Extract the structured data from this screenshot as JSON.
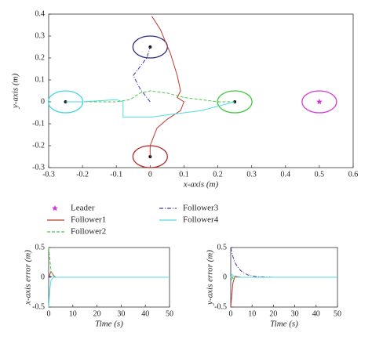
{
  "chart_data": [
    {
      "type": "line",
      "xlabel": "x-axis (m)",
      "ylabel": "y-axis (m)",
      "xlim": [
        -0.3,
        0.6
      ],
      "xticks": [
        -0.3,
        -0.2,
        -0.1,
        0,
        0.1,
        0.2,
        0.3,
        0.4,
        0.5,
        0.6
      ],
      "ylim": [
        -0.3,
        0.4
      ],
      "yticks": [
        -0.3,
        -0.2,
        -0.1,
        0,
        0.1,
        0.2,
        0.3,
        0.4
      ],
      "targets": [
        {
          "x": 0,
          "y": 0.25,
          "color": "#2a2a8a"
        },
        {
          "x": 0,
          "y": -0.25,
          "color": "#b02a2a"
        },
        {
          "x": -0.25,
          "y": 0,
          "color": "#40d8e0"
        },
        {
          "x": 0.25,
          "y": 0,
          "color": "#3cc83c"
        }
      ],
      "series": [
        {
          "name": "Leader",
          "color": "#d43ad4",
          "marker": "star",
          "x": [
            0.5
          ],
          "values": [
            0
          ]
        },
        {
          "name": "Follower1",
          "color": "#c0392b",
          "dash": "solid",
          "x": [
            0.005,
            0.03,
            0.06,
            0.08,
            0.09,
            0.08,
            0.1,
            0.09,
            0.05,
            0.02,
            0,
            0
          ],
          "values": [
            0.39,
            0.33,
            0.22,
            0.12,
            0.05,
            0.02,
            0,
            -0.04,
            -0.08,
            -0.12,
            -0.2,
            -0.25
          ]
        },
        {
          "name": "Follower2",
          "color": "#4cc84c",
          "dash": "dashed",
          "x": [
            -0.25,
            -0.2,
            -0.1,
            -0.06,
            -0.03,
            0,
            0.05,
            0.1,
            0.2,
            0.25
          ],
          "values": [
            0,
            0,
            0,
            0.01,
            0.04,
            0.05,
            0.04,
            0.02,
            0,
            0
          ]
        },
        {
          "name": "Follower3",
          "color": "#3a3aa8",
          "dash": "dashdot",
          "x": [
            0,
            -0.03,
            -0.05,
            -0.03,
            -0.01,
            0
          ],
          "values": [
            0,
            0.06,
            0.12,
            0.16,
            0.2,
            0.25
          ]
        },
        {
          "name": "Follower4",
          "color": "#50dce0",
          "dash": "solid",
          "x": [
            -0.25,
            -0.2,
            -0.1,
            -0.08,
            -0.08,
            -0.05,
            0,
            0.05,
            0.15,
            0.25
          ],
          "values": [
            0,
            0,
            0.01,
            0,
            -0.07,
            -0.07,
            -0.07,
            -0.06,
            -0.04,
            0
          ]
        }
      ]
    },
    {
      "type": "line",
      "xlabel": "Time (s)",
      "ylabel": "x-axis error (m)",
      "xlim": [
        0,
        50
      ],
      "xticks": [
        0,
        10,
        20,
        30,
        40,
        50
      ],
      "ylim": [
        -0.5,
        0.5
      ],
      "yticks": [
        -0.5,
        0,
        0.5
      ],
      "x": [
        0,
        0.5,
        1,
        2,
        3,
        5,
        8,
        12,
        20,
        30,
        50
      ],
      "series": [
        {
          "color": "#c0392b",
          "dash": "solid",
          "values": [
            0,
            0.05,
            0.1,
            0.03,
            0,
            0,
            0,
            0,
            0,
            0,
            0
          ]
        },
        {
          "color": "#4cc84c",
          "dash": "dashed",
          "values": [
            0.5,
            0.3,
            0.1,
            0.02,
            0,
            0,
            0,
            0,
            0,
            0,
            0
          ]
        },
        {
          "color": "#3a3aa8",
          "dash": "dashdot",
          "values": [
            0,
            0.02,
            0.01,
            0,
            0,
            0,
            0,
            0,
            0,
            0,
            0
          ]
        },
        {
          "color": "#50dce0",
          "dash": "solid",
          "values": [
            -0.5,
            -0.2,
            -0.05,
            0,
            0,
            0,
            0,
            0,
            0,
            0,
            0
          ]
        }
      ]
    },
    {
      "type": "line",
      "xlabel": "Time (s)",
      "ylabel": "y-axis error (m)",
      "xlim": [
        0,
        50
      ],
      "xticks": [
        0,
        10,
        20,
        30,
        40,
        50
      ],
      "ylim": [
        -0.5,
        0.5
      ],
      "yticks": [
        -0.5,
        0,
        0.5
      ],
      "x": [
        0,
        0.5,
        1,
        2,
        3,
        5,
        8,
        12,
        20,
        30,
        50
      ],
      "series": [
        {
          "color": "#c0392b",
          "dash": "solid",
          "values": [
            -0.5,
            -0.3,
            -0.1,
            0.02,
            0.01,
            0,
            0,
            0,
            0,
            0,
            0
          ]
        },
        {
          "color": "#4cc84c",
          "dash": "dashed",
          "values": [
            0,
            -0.05,
            -0.02,
            0,
            0,
            0,
            0,
            0,
            0,
            0,
            0
          ]
        },
        {
          "color": "#3a3aa8",
          "dash": "dashdot",
          "values": [
            0.5,
            0.42,
            0.35,
            0.25,
            0.18,
            0.1,
            0.04,
            0.01,
            0,
            0,
            0
          ]
        },
        {
          "color": "#50dce0",
          "dash": "solid",
          "values": [
            0,
            0.05,
            0.03,
            0,
            0,
            0,
            0,
            0,
            0,
            0,
            0
          ]
        }
      ]
    }
  ]
}
